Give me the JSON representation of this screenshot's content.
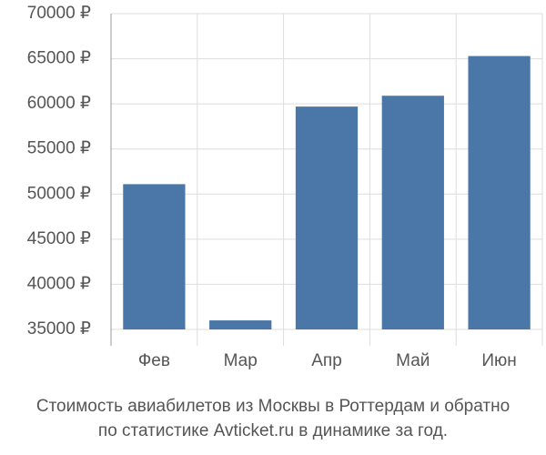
{
  "chart_data": {
    "type": "bar",
    "title": [
      "Стоимость авиабилетов из Москвы в Роттердам и обратно",
      "по статистике Avticket.ru в динамике за год."
    ],
    "categories": [
      "Фев",
      "Мар",
      "Апр",
      "Май",
      "Июн"
    ],
    "values": [
      51100,
      36000,
      59700,
      60900,
      65300
    ],
    "color": "#4a76a8",
    "ylim": [
      35000,
      70000
    ],
    "yticks": [
      {
        "value": 35000,
        "label": "35000 ₽"
      },
      {
        "value": 40000,
        "label": "40000 ₽"
      },
      {
        "value": 45000,
        "label": "45000 ₽"
      },
      {
        "value": 50000,
        "label": "50000 ₽"
      },
      {
        "value": 55000,
        "label": "55000 ₽"
      },
      {
        "value": 60000,
        "label": "60000 ₽"
      },
      {
        "value": 65000,
        "label": "65000 ₽"
      },
      {
        "value": 70000,
        "label": "70000 ₽"
      }
    ],
    "grid": true
  }
}
